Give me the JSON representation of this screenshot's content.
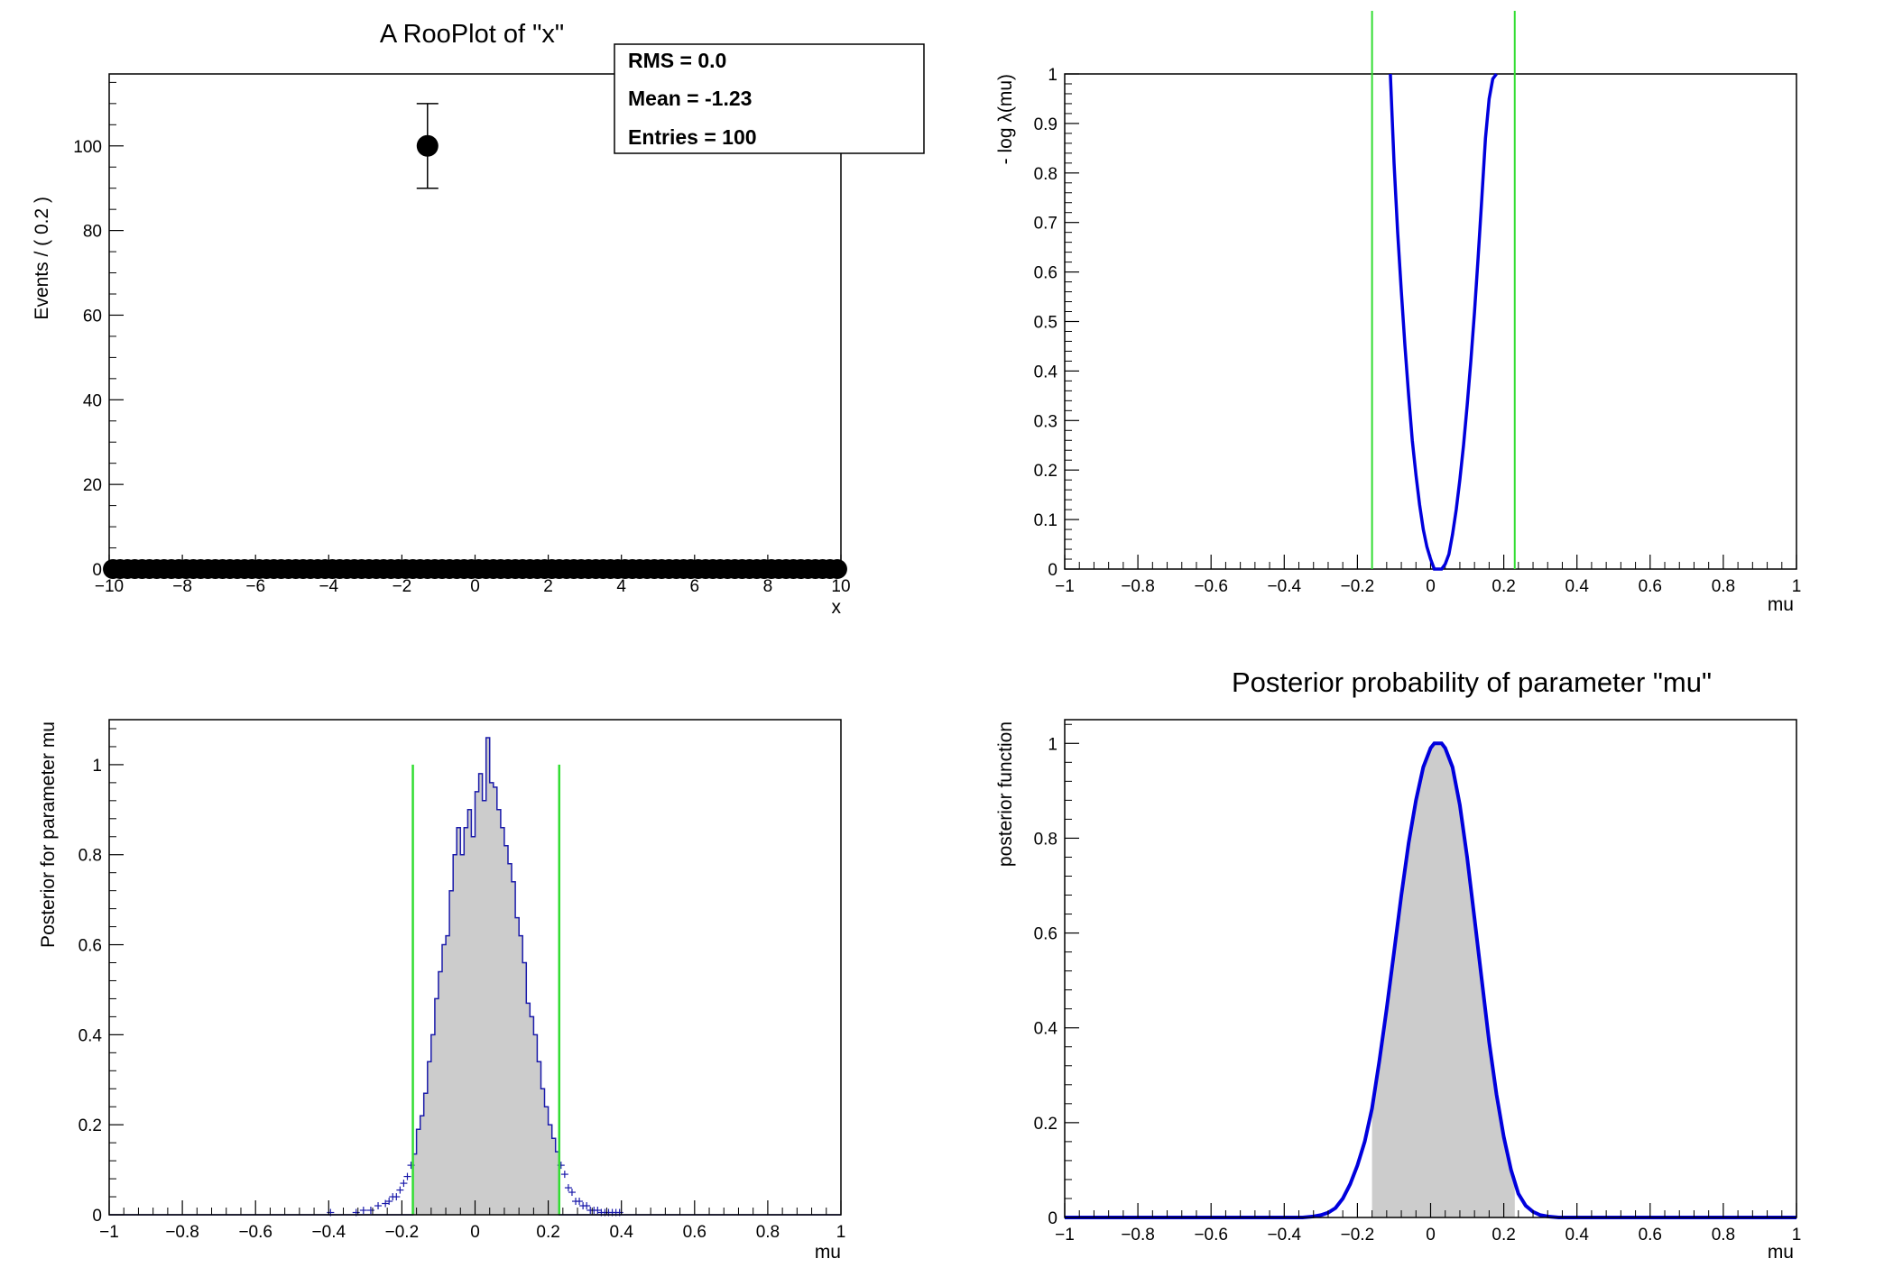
{
  "chart_data": [
    {
      "type": "scatter",
      "title": "A RooPlot of \"x\"",
      "xlabel": "x",
      "ylabel": "Events / ( 0.2 )",
      "xlim": [
        -10,
        10
      ],
      "ylim": [
        0,
        117
      ],
      "xticks": [
        -10,
        -8,
        -6,
        -4,
        -2,
        0,
        2,
        4,
        6,
        8,
        10
      ],
      "yticks": [
        0,
        20,
        40,
        60,
        80,
        100
      ],
      "bin_width": 0.2,
      "points": {
        "bins_from": -10,
        "bins_to": 10,
        "value": 0,
        "peak_x": -1.3,
        "peak_y": 100,
        "peak_err": 10
      },
      "stats": {
        "rms": "RMS =  0.0",
        "mean": "Mean = -1.23",
        "entries": "Entries =  100"
      }
    },
    {
      "type": "line",
      "title": "",
      "xlabel": "mu",
      "ylabel": "- log λ(mu)",
      "xlim": [
        -1,
        1
      ],
      "ylim": [
        0,
        1
      ],
      "xticks": [
        -1,
        -0.8,
        -0.6,
        -0.4,
        -0.2,
        0,
        0.2,
        0.4,
        0.6,
        0.8,
        1
      ],
      "yticks": [
        0,
        0.1,
        0.2,
        0.3,
        0.4,
        0.5,
        0.6,
        0.7,
        0.8,
        0.9,
        1
      ],
      "series": [
        {
          "x": [
            -0.11,
            -0.1,
            -0.09,
            -0.08,
            -0.07,
            -0.06,
            -0.05,
            -0.04,
            -0.03,
            -0.02,
            -0.01,
            0.0,
            0.01,
            0.02,
            0.03,
            0.04,
            0.05,
            0.06,
            0.07,
            0.08,
            0.09,
            0.1,
            0.11,
            0.12,
            0.13,
            0.14,
            0.15,
            0.16,
            0.17,
            0.18
          ],
          "y": [
            1.0,
            0.82,
            0.68,
            0.56,
            0.45,
            0.35,
            0.26,
            0.19,
            0.13,
            0.08,
            0.045,
            0.02,
            0.0,
            0.0,
            0.0,
            0.01,
            0.03,
            0.07,
            0.12,
            0.18,
            0.25,
            0.33,
            0.42,
            0.52,
            0.63,
            0.75,
            0.87,
            0.95,
            0.99,
            1.0
          ],
          "color": "#0000dd"
        }
      ],
      "vlines": [
        -0.16,
        0.23
      ],
      "vline_color": "#33dd33"
    },
    {
      "type": "area",
      "title": "",
      "xlabel": "mu",
      "ylabel": "Posterior for parameter mu",
      "xlim": [
        -1,
        1
      ],
      "ylim": [
        0,
        1.1
      ],
      "xticks": [
        -1,
        -0.8,
        -0.6,
        -0.4,
        -0.2,
        0,
        0.2,
        0.4,
        0.6,
        0.8,
        1
      ],
      "yticks": [
        0,
        0.2,
        0.4,
        0.6,
        0.8,
        1
      ],
      "hist": {
        "bin_width": 0.01,
        "x": [
          -0.4,
          -0.33,
          -0.31,
          -0.29,
          -0.27,
          -0.25,
          -0.24,
          -0.23,
          -0.22,
          -0.21,
          -0.2,
          -0.19,
          -0.18,
          -0.17,
          -0.16,
          -0.15,
          -0.14,
          -0.13,
          -0.12,
          -0.11,
          -0.1,
          -0.09,
          -0.08,
          -0.07,
          -0.06,
          -0.05,
          -0.04,
          -0.03,
          -0.02,
          -0.01,
          0.0,
          0.01,
          0.02,
          0.03,
          0.04,
          0.05,
          0.06,
          0.07,
          0.08,
          0.09,
          0.1,
          0.11,
          0.12,
          0.13,
          0.14,
          0.15,
          0.16,
          0.17,
          0.18,
          0.19,
          0.2,
          0.21,
          0.22,
          0.23,
          0.24,
          0.25,
          0.26,
          0.27,
          0.28,
          0.29,
          0.3,
          0.31,
          0.32,
          0.33,
          0.34,
          0.35,
          0.36,
          0.37,
          0.38,
          0.39
        ],
        "y": [
          0.005,
          0.005,
          0.01,
          0.01,
          0.02,
          0.025,
          0.03,
          0.04,
          0.04,
          0.055,
          0.07,
          0.085,
          0.11,
          0.135,
          0.19,
          0.22,
          0.27,
          0.34,
          0.4,
          0.48,
          0.54,
          0.6,
          0.62,
          0.72,
          0.8,
          0.86,
          0.8,
          0.86,
          0.9,
          0.84,
          0.94,
          0.98,
          0.92,
          1.06,
          0.96,
          0.95,
          0.9,
          0.86,
          0.82,
          0.78,
          0.74,
          0.66,
          0.62,
          0.56,
          0.47,
          0.44,
          0.4,
          0.34,
          0.28,
          0.24,
          0.2,
          0.17,
          0.14,
          0.11,
          0.09,
          0.06,
          0.05,
          0.03,
          0.03,
          0.02,
          0.02,
          0.01,
          0.01,
          0.01,
          0.005,
          0.005,
          0.005,
          0.005,
          0.005,
          0.005
        ],
        "color": "#1a1aaa"
      },
      "shade": [
        -0.17,
        0.23
      ],
      "vlines": [
        -0.17,
        0.23
      ],
      "vline_height": 1,
      "vline_color": "#33dd33"
    },
    {
      "type": "area",
      "title": "Posterior probability of parameter \"mu\"",
      "xlabel": "mu",
      "ylabel": "posterior function",
      "xlim": [
        -1,
        1
      ],
      "ylim": [
        0,
        1.05
      ],
      "xticks": [
        -1,
        -0.8,
        -0.6,
        -0.4,
        -0.2,
        0,
        0.2,
        0.4,
        0.6,
        0.8,
        1
      ],
      "yticks": [
        0,
        0.2,
        0.4,
        0.6,
        0.8,
        1
      ],
      "series": [
        {
          "x": [
            -1.0,
            -0.4,
            -0.35,
            -0.32,
            -0.3,
            -0.28,
            -0.26,
            -0.24,
            -0.22,
            -0.2,
            -0.18,
            -0.16,
            -0.14,
            -0.12,
            -0.1,
            -0.08,
            -0.06,
            -0.04,
            -0.02,
            0.0,
            0.01,
            0.02,
            0.03,
            0.04,
            0.06,
            0.08,
            0.1,
            0.12,
            0.14,
            0.16,
            0.18,
            0.2,
            0.22,
            0.24,
            0.26,
            0.28,
            0.3,
            0.32,
            0.35,
            0.4,
            1.0
          ],
          "y": [
            0.0,
            0.0,
            0.0,
            0.002,
            0.005,
            0.01,
            0.02,
            0.04,
            0.07,
            0.11,
            0.16,
            0.23,
            0.33,
            0.44,
            0.56,
            0.68,
            0.79,
            0.88,
            0.95,
            0.99,
            1.0,
            1.0,
            1.0,
            0.99,
            0.95,
            0.87,
            0.76,
            0.63,
            0.5,
            0.37,
            0.26,
            0.17,
            0.1,
            0.05,
            0.025,
            0.012,
            0.005,
            0.002,
            0.0,
            0.0,
            0.0
          ],
          "color": "#0000dd"
        }
      ],
      "shade": [
        -0.16,
        0.23
      ]
    }
  ]
}
